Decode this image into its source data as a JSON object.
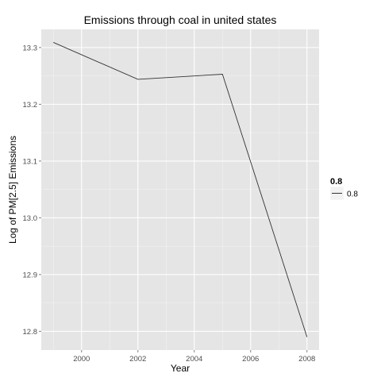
{
  "chart_data": {
    "type": "line",
    "title": "Emissions through coal in united states",
    "xlabel": "Year",
    "ylabel": "Log of PM[2.5] Emissions",
    "x": [
      1999,
      2002,
      2005,
      2008
    ],
    "series": [
      {
        "name": "0.8",
        "values": [
          13.309,
          13.244,
          13.253,
          12.79
        ]
      }
    ],
    "xlim": [
      1998.57,
      2008.43
    ],
    "ylim": [
      12.767,
      13.332
    ],
    "x_ticks": [
      {
        "value": 2000,
        "label": "2000"
      },
      {
        "value": 2002,
        "label": "2002"
      },
      {
        "value": 2004,
        "label": "2004"
      },
      {
        "value": 2006,
        "label": "2006"
      },
      {
        "value": 2008,
        "label": "2008"
      }
    ],
    "y_ticks": [
      {
        "value": 12.8,
        "label": "12.8"
      },
      {
        "value": 12.9,
        "label": "12.9"
      },
      {
        "value": 13.0,
        "label": "13.0"
      },
      {
        "value": 13.1,
        "label": "13.1"
      },
      {
        "value": 13.2,
        "label": "13.2"
      },
      {
        "value": 13.3,
        "label": "13.3"
      }
    ],
    "legend": {
      "title": "0.8",
      "placement": "right",
      "entries": [
        {
          "label": "0.8",
          "color": "#333333"
        }
      ]
    },
    "grid": true,
    "panel_color": "#e5e5e5",
    "grid_color": "#ffffff",
    "line_color": "#333333"
  }
}
